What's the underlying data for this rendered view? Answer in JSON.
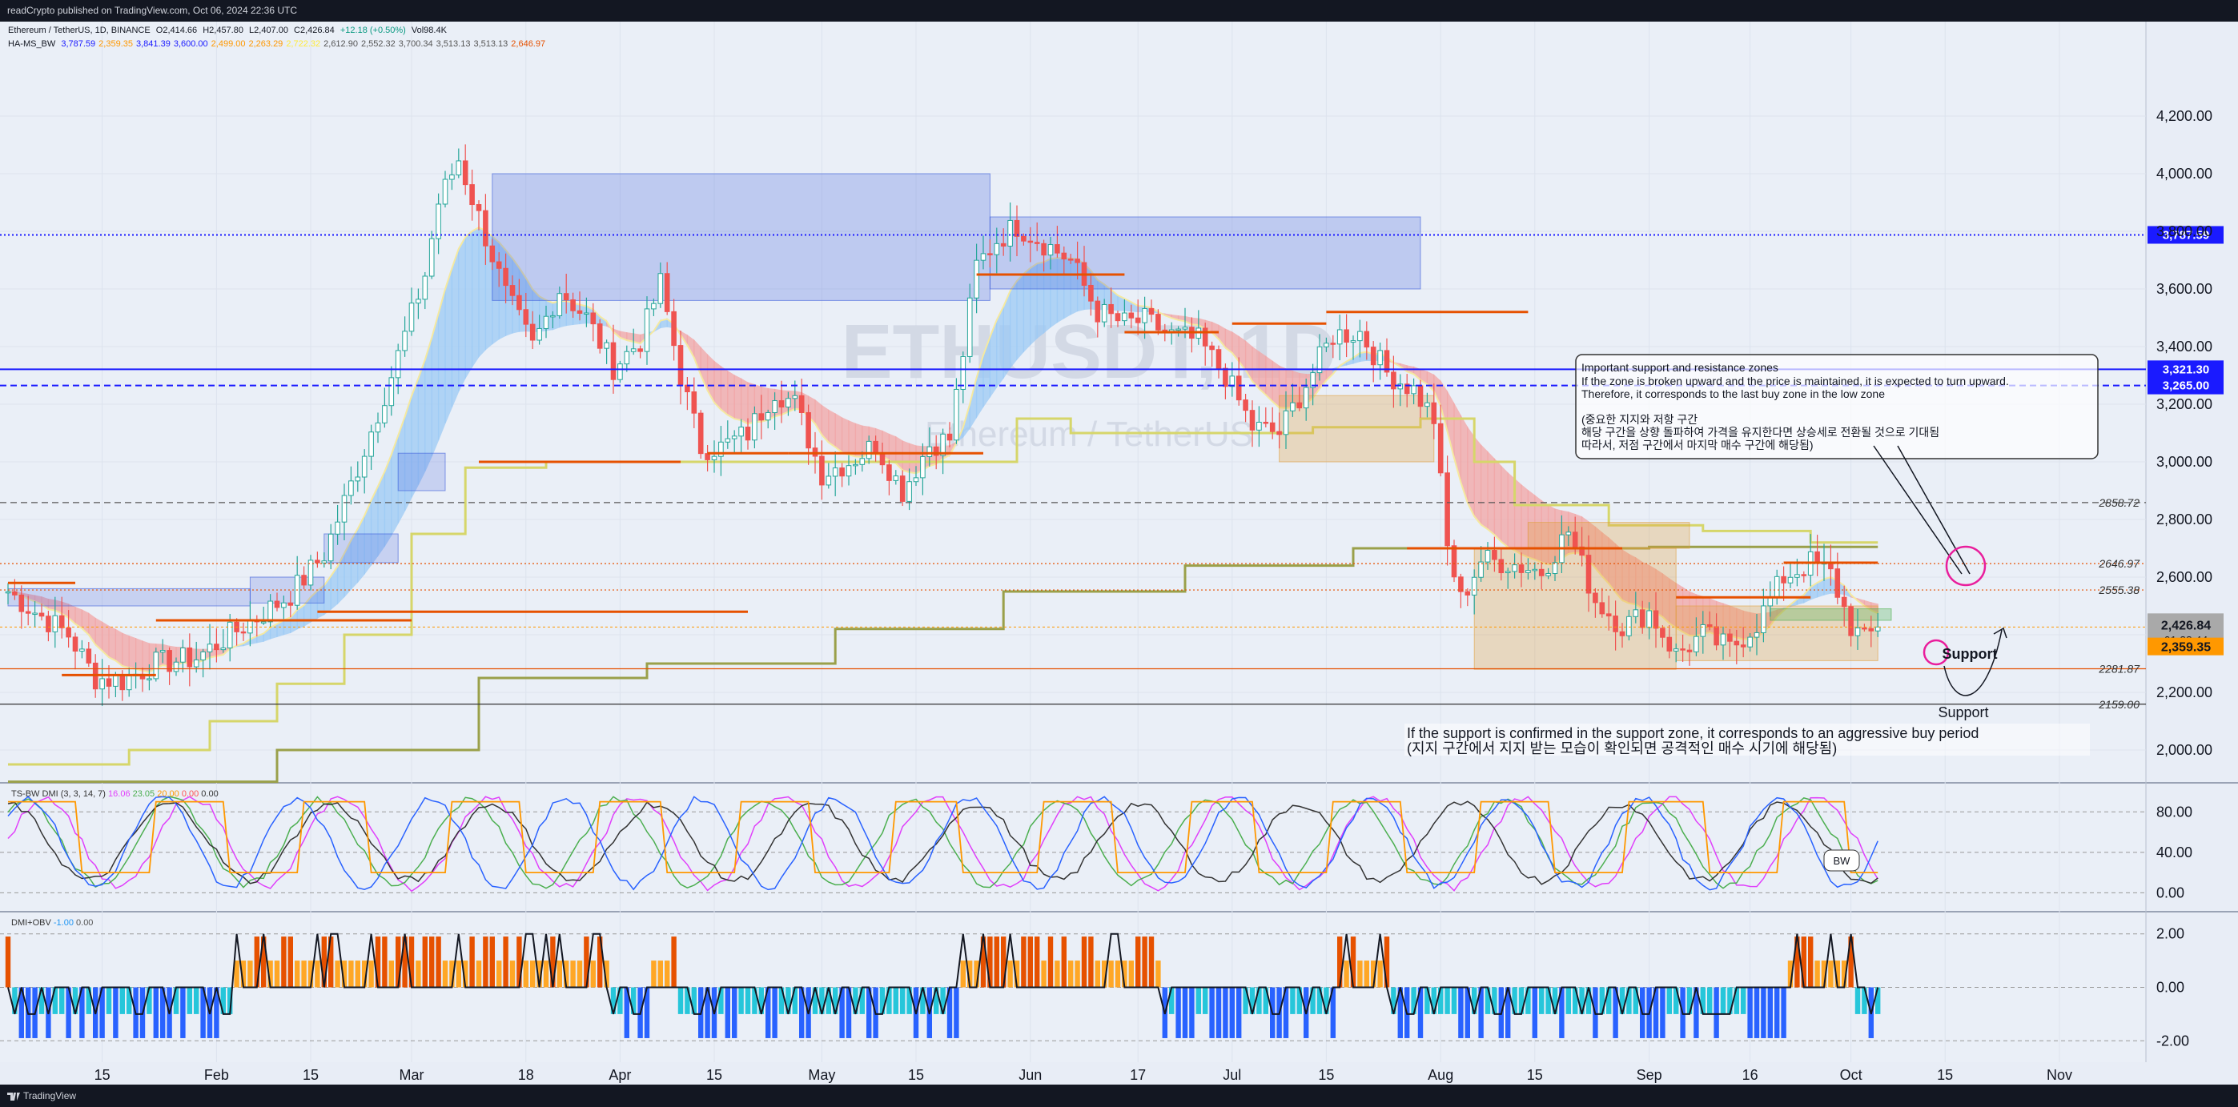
{
  "header": {
    "publish_text": "readCrypto published on TradingView.com, Oct 06, 2024 22:36 UTC"
  },
  "footer": {
    "brand": "TradingView"
  },
  "legend": {
    "symbol_line": [
      "Ethereum / TetherUS, 1D, BINANCE",
      "O2,414.66",
      "H2,457.80",
      "L2,407.00",
      "C2,426.84",
      "+12.18 (+0.50%)",
      "Vol98.4K"
    ],
    "indicator_name": "HA-MS_BW",
    "indicator_values": [
      "3,787.59",
      "2,359.35",
      "3,841.39",
      "3,600.00",
      "2,499.00",
      "2,263.29",
      "2,722.32",
      "2,612.90",
      "2,552.32",
      "3,700.34",
      "3,513.13",
      "3,513.13",
      "2,646.97"
    ],
    "indicator_colors": [
      "#1a1aff",
      "#ff9800",
      "#1a1aff",
      "#1a1aff",
      "#ff9800",
      "#ff9800",
      "#ffeb3b",
      "#555555",
      "#555555",
      "#555555",
      "#555555",
      "#555555",
      "#e65100"
    ]
  },
  "chart_data": [
    {
      "type": "candlestick",
      "watermark": {
        "symbol": "ETHUSDT, 1D",
        "name": "Ethereum / TetherUS"
      },
      "y_ticks": [
        2000,
        2200,
        2400,
        2600,
        2800,
        3000,
        3200,
        3400,
        3600,
        3800,
        4000,
        4200
      ],
      "y_tick_labels": [
        "2,000.00",
        "2,200.00",
        "2,400.00",
        "2,600.00",
        "2,800.00",
        "3,000.00",
        "3,200.00",
        "3,400.00",
        "3,600.00",
        "3,800.00",
        "4,000.00",
        "4,200.00"
      ],
      "ylim": [
        1930,
        4300
      ],
      "x_ticks": [
        "15",
        "Feb",
        "15",
        "Mar",
        "18",
        "Apr",
        "15",
        "May",
        "15",
        "Jun",
        "17",
        "Jul",
        "15",
        "Aug",
        "15",
        "Sep",
        "16",
        "Oct",
        "15",
        "Nov"
      ],
      "x_tick_days": [
        14,
        31,
        45,
        60,
        77,
        91,
        105,
        121,
        135,
        152,
        168,
        182,
        196,
        213,
        227,
        244,
        259,
        274,
        288,
        305
      ],
      "ohlc_path": [
        [
          0,
          2550
        ],
        [
          4,
          2480
        ],
        [
          9,
          2400
        ],
        [
          13,
          2250
        ],
        [
          17,
          2240
        ],
        [
          22,
          2300
        ],
        [
          28,
          2320
        ],
        [
          33,
          2400
        ],
        [
          37,
          2460
        ],
        [
          42,
          2540
        ],
        [
          47,
          2680
        ],
        [
          52,
          2980
        ],
        [
          57,
          3300
        ],
        [
          62,
          3650
        ],
        [
          64,
          3900
        ],
        [
          67,
          4050
        ],
        [
          70,
          3850
        ],
        [
          74,
          3580
        ],
        [
          78,
          3400
        ],
        [
          82,
          3600
        ],
        [
          86,
          3500
        ],
        [
          90,
          3330
        ],
        [
          94,
          3420
        ],
        [
          97,
          3620
        ],
        [
          100,
          3300
        ],
        [
          103,
          3050
        ],
        [
          106,
          3050
        ],
        [
          110,
          3100
        ],
        [
          114,
          3250
        ],
        [
          117,
          3200
        ],
        [
          121,
          2960
        ],
        [
          125,
          3000
        ],
        [
          129,
          3060
        ],
        [
          133,
          2900
        ],
        [
          137,
          3060
        ],
        [
          140,
          3080
        ],
        [
          144,
          3680
        ],
        [
          147,
          3770
        ],
        [
          150,
          3820
        ],
        [
          154,
          3760
        ],
        [
          158,
          3700
        ],
        [
          162,
          3520
        ],
        [
          166,
          3480
        ],
        [
          169,
          3490
        ],
        [
          173,
          3440
        ],
        [
          177,
          3420
        ],
        [
          181,
          3300
        ],
        [
          185,
          3120
        ],
        [
          189,
          3100
        ],
        [
          193,
          3270
        ],
        [
          197,
          3440
        ],
        [
          201,
          3450
        ],
        [
          205,
          3310
        ],
        [
          209,
          3250
        ],
        [
          212,
          3150
        ],
        [
          214,
          2700
        ],
        [
          216,
          2520
        ],
        [
          219,
          2660
        ],
        [
          223,
          2650
        ],
        [
          228,
          2620
        ],
        [
          232,
          2760
        ],
        [
          236,
          2520
        ],
        [
          240,
          2430
        ],
        [
          244,
          2480
        ],
        [
          248,
          2330
        ],
        [
          252,
          2400
        ],
        [
          256,
          2350
        ],
        [
          260,
          2440
        ],
        [
          264,
          2600
        ],
        [
          268,
          2650
        ],
        [
          271,
          2610
        ],
        [
          274,
          2430
        ],
        [
          276,
          2380
        ],
        [
          278,
          2426.84
        ]
      ],
      "horizontal_levels": [
        {
          "label": "3,787.59",
          "value": 3787.59,
          "color": "#1a1aff",
          "style": "dotted"
        },
        {
          "label": "3,321.30",
          "value": 3321.3,
          "color": "#1a1aff",
          "style": "solid"
        },
        {
          "label": "3,265.00",
          "value": 3265.0,
          "color": "#1a1aff",
          "style": "dashed"
        },
        {
          "label": "2858.72",
          "value": 2858.72,
          "color": "#555555",
          "style": "dashed"
        },
        {
          "label": "2646.97",
          "value": 2646.97,
          "color": "#e65100",
          "style": "dotted"
        },
        {
          "label": "2555.38",
          "value": 2555.38,
          "color": "#e65100",
          "style": "dotted"
        },
        {
          "label": "2281.87",
          "value": 2281.87,
          "color": "#e65100",
          "style": "solid"
        },
        {
          "label": "2159.00",
          "value": 2159.0,
          "color": "#333333",
          "style": "solid"
        }
      ],
      "price_badge": {
        "price": "2,426.84",
        "countdown": "01:23:44"
      },
      "low_badge": {
        "label": "2,359.35",
        "value": 2359.35
      },
      "annotations": {
        "callout_title": "Important support and resistance zones",
        "callout_lines": [
          "If the zone is broken upward and the price is maintained, it is expected to turn upward.",
          "Therefore, it corresponds to the last buy zone in the low zone",
          "",
          "(중요한 지지와 저항 구간",
          "해당 구간을 상향 돌파하여 가격을 유지한다면 상승세로 전환될 것으로 기대됨",
          "따라서, 저점 구간에서 마지막 매수 구간에 해당됨)"
        ],
        "support_label_1": "Support",
        "support_label_2": "Support",
        "bottom_note_1": "If the support is confirmed in the support zone, it corresponds to an aggressive buy period",
        "bottom_note_2": "(지지 구간에서 지지 받는 모습이 확인되면 공격적인 매수 시기에 해당됨)",
        "bw_label": "BW"
      }
    },
    {
      "type": "line",
      "name_line": [
        "TS-BW DMI (3, 3, 14, 7)",
        "16.06",
        "23.05",
        "20.00",
        "0.00",
        "0.00"
      ],
      "name_colors": [
        "#333333",
        "#e040fb",
        "#4caf50",
        "#ff9800",
        "#ff5252",
        "#333333"
      ],
      "y_tick_labels": [
        "80.00",
        "40.00",
        "0.00"
      ],
      "y_ticks": [
        80,
        40,
        0
      ],
      "ylim": [
        -10,
        100
      ]
    },
    {
      "type": "bar",
      "name_line": [
        "DMI+OBV",
        "-1.00",
        "0.00"
      ],
      "name_colors": [
        "#333333",
        "#2196f3",
        "#555555"
      ],
      "y_tick_labels": [
        "2.00",
        "0.00",
        "-2.00"
      ],
      "y_ticks": [
        2,
        0,
        -2
      ],
      "ylim": [
        -2.5,
        2.5
      ]
    }
  ]
}
